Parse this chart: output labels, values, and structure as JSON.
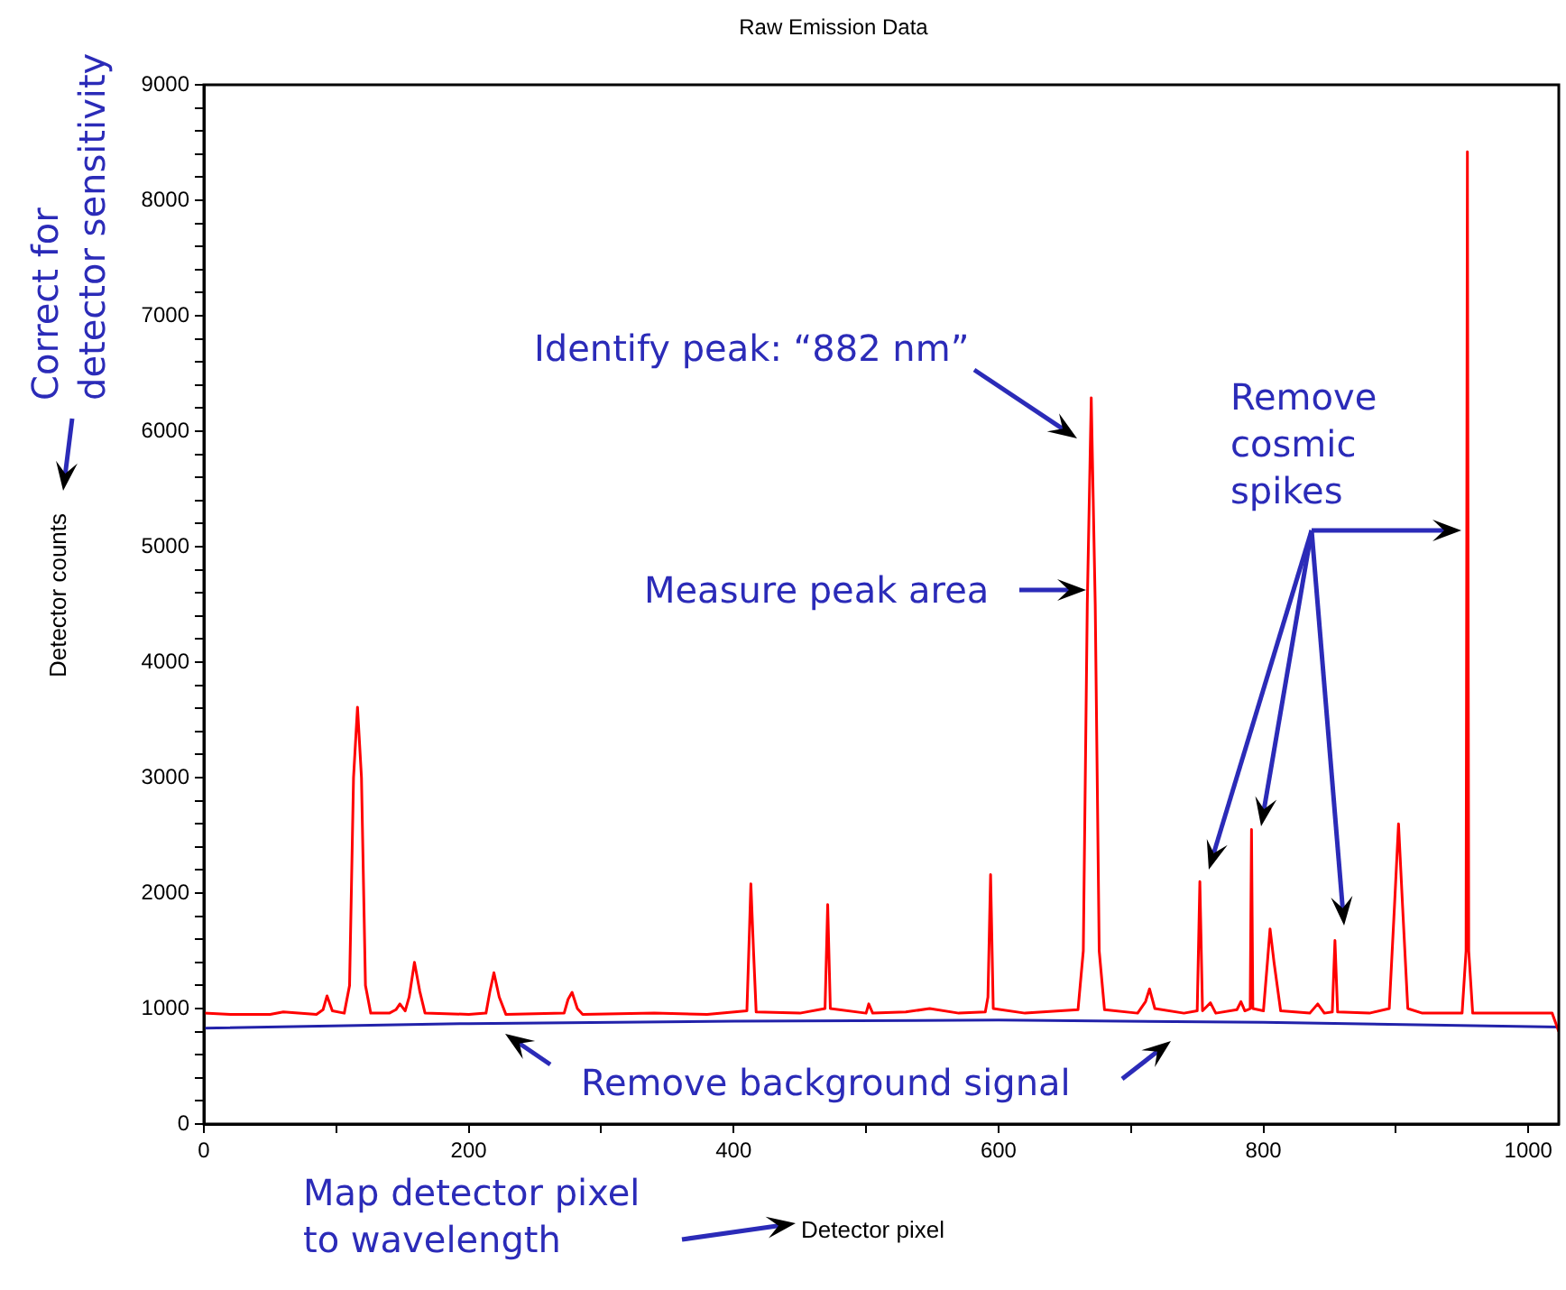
{
  "chart_data": {
    "type": "line",
    "title": "Raw Emission Data",
    "xlabel": "Detector pixel",
    "ylabel": "Detector counts",
    "annotations": [
      "Correct for\ndetector sensitivity",
      "Identify peak: “882 nm”",
      "Remove\ncosmic\nspikes",
      "Measure peak area",
      "Remove background signal",
      "Map detector pixel\nto wavelength"
    ],
    "xlim": [
      0,
      1023
    ],
    "ylim": [
      0,
      9000
    ],
    "xticks": [
      0,
      {
        "value": 100,
        "label": null
      },
      200,
      {
        "value": 300,
        "label": null
      },
      400,
      {
        "value": 500,
        "label": null
      },
      600,
      {
        "value": 700,
        "label": null
      },
      800,
      {
        "value": 900,
        "label": null
      },
      1000
    ],
    "yticks": [
      0,
      {
        "value": 200,
        "label": null
      },
      {
        "value": 400,
        "label": null
      },
      {
        "value": 600,
        "label": null
      },
      {
        "value": 800,
        "label": null
      },
      1000,
      {
        "value": 1200,
        "label": null
      },
      {
        "value": 1400,
        "label": null
      },
      {
        "value": 1600,
        "label": null
      },
      {
        "value": 1800,
        "label": null
      },
      2000,
      {
        "value": 2200,
        "label": null
      },
      {
        "value": 2400,
        "label": null
      },
      {
        "value": 2600,
        "label": null
      },
      {
        "value": 2800,
        "label": null
      },
      3000,
      {
        "value": 3200,
        "label": null
      },
      {
        "value": 3400,
        "label": null
      },
      {
        "value": 3600,
        "label": null
      },
      {
        "value": 3800,
        "label": null
      },
      4000,
      {
        "value": 4200,
        "label": null
      },
      {
        "value": 4400,
        "label": null
      },
      {
        "value": 4600,
        "label": null
      },
      {
        "value": 4800,
        "label": null
      },
      5000,
      {
        "value": 5200,
        "label": null
      },
      {
        "value": 5400,
        "label": null
      },
      {
        "value": 5600,
        "label": null
      },
      {
        "value": 5800,
        "label": null
      },
      6000,
      {
        "value": 6200,
        "label": null
      },
      {
        "value": 6400,
        "label": null
      },
      {
        "value": 6600,
        "label": null
      },
      {
        "value": 6800,
        "label": null
      },
      7000,
      {
        "value": 7200,
        "label": null
      },
      {
        "value": 7400,
        "label": null
      },
      {
        "value": 7600,
        "label": null
      },
      {
        "value": 7800,
        "label": null
      },
      8000,
      {
        "value": 8200,
        "label": null
      },
      {
        "value": 8400,
        "label": null
      },
      {
        "value": 8600,
        "label": null
      },
      {
        "value": 8800,
        "label": null
      },
      9000
    ],
    "grid": false,
    "legend": false,
    "marker": "none",
    "line_style": "solid",
    "series": [
      {
        "color": "#ff0000",
        "x": [
          0,
          20,
          50,
          60,
          85,
          90,
          93,
          97,
          106,
          110,
          113,
          116,
          119,
          122,
          126,
          140,
          145,
          148,
          152,
          155,
          159,
          163,
          167,
          200,
          213,
          216,
          219,
          223,
          228,
          272,
          275,
          278,
          282,
          286,
          340,
          380,
          410,
          412,
          413,
          415,
          417,
          450,
          469,
          471,
          473,
          500,
          502,
          505,
          530,
          548,
          570,
          590,
          592,
          594,
          596,
          620,
          660,
          664,
          667,
          670,
          673,
          676,
          680,
          705,
          711,
          714,
          718,
          740,
          750,
          752,
          754,
          760,
          764,
          780,
          783,
          786,
          790,
          791,
          792,
          800,
          803,
          805,
          808,
          813,
          835,
          841,
          846,
          852,
          854,
          856,
          880,
          895,
          899,
          902,
          905,
          909,
          920,
          950,
          953,
          954,
          955,
          958,
          1000,
          1018,
          1023
        ],
        "values": [
          960,
          950,
          950,
          970,
          950,
          990,
          1110,
          980,
          960,
          1200,
          3000,
          3610,
          3000,
          1200,
          960,
          960,
          990,
          1040,
          980,
          1100,
          1400,
          1150,
          960,
          950,
          960,
          1150,
          1310,
          1100,
          950,
          960,
          1080,
          1140,
          1000,
          950,
          960,
          950,
          980,
          1700,
          2080,
          1500,
          970,
          960,
          1000,
          1900,
          1000,
          960,
          1040,
          960,
          970,
          1000,
          960,
          970,
          1100,
          2160,
          1000,
          960,
          990,
          1500,
          4500,
          6290,
          4500,
          1500,
          990,
          960,
          1060,
          1170,
          1000,
          960,
          980,
          2100,
          980,
          1050,
          960,
          990,
          1060,
          980,
          1000,
          2550,
          1000,
          980,
          1400,
          1690,
          1400,
          980,
          960,
          1040,
          960,
          970,
          1590,
          970,
          960,
          1000,
          1900,
          2600,
          1900,
          1000,
          960,
          960,
          1500,
          8420,
          1500,
          960,
          960,
          960,
          800
        ]
      },
      {
        "color": "#2222aa",
        "x": [
          0,
          200,
          400,
          600,
          800,
          1023
        ],
        "values": [
          830,
          870,
          890,
          900,
          880,
          840
        ]
      }
    ]
  }
}
